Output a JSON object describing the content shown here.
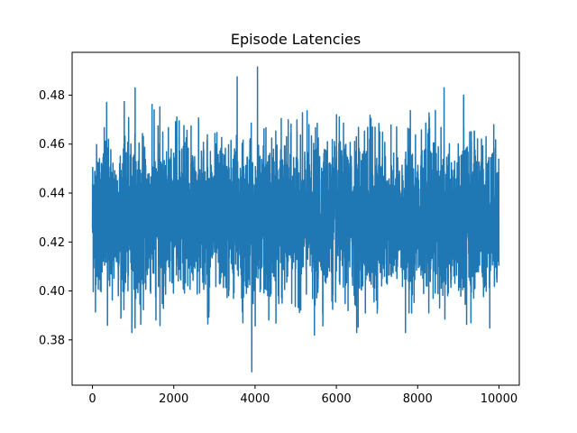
{
  "chart_data": {
    "type": "line",
    "title": "Episode Latencies",
    "xlabel": "",
    "ylabel": "",
    "xlim": [
      -500,
      10500
    ],
    "ylim": [
      0.3615,
      0.4975
    ],
    "xticks": [
      0,
      2000,
      4000,
      6000,
      8000,
      10000
    ],
    "xtick_labels": [
      "0",
      "2000",
      "4000",
      "6000",
      "8000",
      "10000"
    ],
    "yticks": [
      0.38,
      0.4,
      0.42,
      0.44,
      0.46,
      0.48
    ],
    "ytick_labels": [
      "0.38",
      "0.40",
      "0.42",
      "0.44",
      "0.46",
      "0.48"
    ],
    "grid": false,
    "legend": "none",
    "series_color": "#1f77b4",
    "series": [
      {
        "n_points": 10000,
        "x_range": [
          0,
          9999
        ],
        "mean": 0.43,
        "typical_band": [
          0.405,
          0.455
        ],
        "notable_values": [
          {
            "x": 3920,
            "y": 0.367
          },
          {
            "x": 4060,
            "y": 0.4915
          },
          {
            "x": 3560,
            "y": 0.4875
          },
          {
            "x": 8650,
            "y": 0.483
          },
          {
            "x": 1050,
            "y": 0.483
          },
          {
            "x": 9130,
            "y": 0.48
          },
          {
            "x": 5460,
            "y": 0.382
          },
          {
            "x": 6500,
            "y": 0.383
          },
          {
            "x": 970,
            "y": 0.383
          },
          {
            "x": 7700,
            "y": 0.383
          },
          {
            "x": 350,
            "y": 0.477
          },
          {
            "x": 370,
            "y": 0.386
          },
          {
            "x": 3700,
            "y": 0.387
          },
          {
            "x": 9310,
            "y": 0.387
          }
        ]
      }
    ]
  }
}
